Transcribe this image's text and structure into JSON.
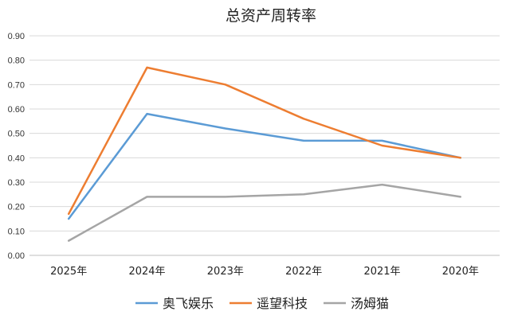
{
  "chart_data": {
    "type": "line",
    "title": "总资产周转率",
    "categories": [
      "2025年",
      "2024年",
      "2023年",
      "2022年",
      "2021年",
      "2020年"
    ],
    "ylim": [
      0,
      0.9
    ],
    "yticks": [
      "0.00",
      "0.10",
      "0.20",
      "0.30",
      "0.40",
      "0.50",
      "0.60",
      "0.70",
      "0.80",
      "0.90"
    ],
    "grid": true,
    "legend_position": "bottom",
    "series": [
      {
        "name": "奥飞娱乐",
        "color": "#5b9bd5",
        "values": [
          0.15,
          0.58,
          0.52,
          0.47,
          0.47,
          0.4
        ]
      },
      {
        "name": "遥望科技",
        "color": "#ed7d31",
        "values": [
          0.17,
          0.77,
          0.7,
          0.56,
          0.45,
          0.4
        ]
      },
      {
        "name": "汤姆猫",
        "color": "#a5a5a5",
        "values": [
          0.06,
          0.24,
          0.24,
          0.25,
          0.29,
          0.24
        ]
      }
    ]
  }
}
